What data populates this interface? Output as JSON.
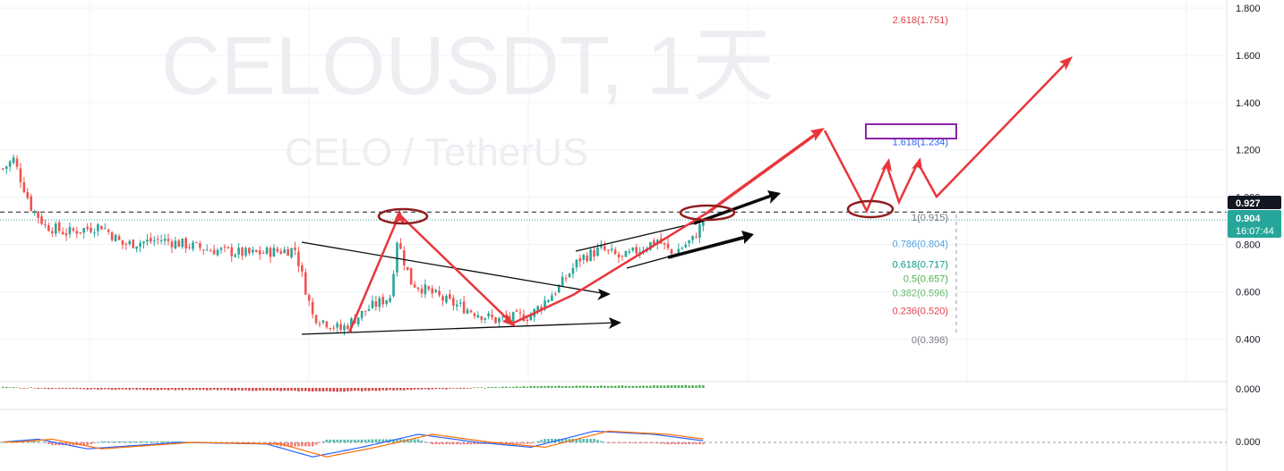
{
  "watermark": {
    "symbol": "CELOUSDT, 1天",
    "name": "CELO / TetherUS"
  },
  "colors": {
    "up": "#26a69a",
    "down": "#ef5350",
    "red_arrow": "#e8363c",
    "black_arrow": "#0b0b0b",
    "ellipse": "#8e1e1e",
    "purple_box": "#8e24aa",
    "grid": "#f0f3fa",
    "badge_black": "#131722",
    "badge_green": "#26a69a"
  },
  "price_axis": {
    "ticks": [
      "1.800",
      "1.600",
      "1.400",
      "1.200",
      "1.000",
      "0.800",
      "0.600",
      "0.400"
    ],
    "tick_values": [
      1.8,
      1.6,
      1.4,
      1.2,
      1.0,
      0.8,
      0.6,
      0.4
    ],
    "last_price_label": "0.927",
    "current_price_label": "0.904",
    "countdown": "16:07:44"
  },
  "indicator_axis": {
    "top_label": "0.000",
    "bottom_label": "0.000"
  },
  "fib_levels": [
    {
      "label": "2.618(1.751)",
      "value": 1.751,
      "color": "#e0424c"
    },
    {
      "label": "1.618(1.234)",
      "value": 1.234,
      "color": "#2962ff"
    },
    {
      "label": "1(0.915)",
      "value": 0.915,
      "color": "#787b86"
    },
    {
      "label": "0.786(0.804)",
      "value": 0.804,
      "color": "#4fa3e0"
    },
    {
      "label": "0.618(0.717)",
      "value": 0.717,
      "color": "#089981"
    },
    {
      "label": "0.5(0.657)",
      "value": 0.657,
      "color": "#4caf50"
    },
    {
      "label": "0.382(0.596)",
      "value": 0.596,
      "color": "#66bb6a"
    },
    {
      "label": "0.236(0.520)",
      "value": 0.52,
      "color": "#e0424c"
    },
    {
      "label": "0(0.398)",
      "value": 0.398,
      "color": "#787b86"
    }
  ],
  "chart_data": {
    "type": "candlestick",
    "title": "",
    "xlabel": "",
    "ylabel": "",
    "ylim": [
      0.36,
      1.82
    ],
    "grid": true,
    "last_price": 0.927,
    "current_price": 0.904,
    "reference_line": 0.915,
    "price_path_keyframes": [
      {
        "bar": 0,
        "price": 1.12
      },
      {
        "bar": 3,
        "price": 1.16
      },
      {
        "bar": 8,
        "price": 0.96
      },
      {
        "bar": 12,
        "price": 0.88
      },
      {
        "bar": 18,
        "price": 0.85
      },
      {
        "bar": 28,
        "price": 0.88
      },
      {
        "bar": 34,
        "price": 0.8
      },
      {
        "bar": 45,
        "price": 0.82
      },
      {
        "bar": 58,
        "price": 0.78
      },
      {
        "bar": 70,
        "price": 0.76
      },
      {
        "bar": 83,
        "price": 0.78
      },
      {
        "bar": 88,
        "price": 0.5
      },
      {
        "bar": 96,
        "price": 0.44
      },
      {
        "bar": 104,
        "price": 0.53
      },
      {
        "bar": 110,
        "price": 0.58
      },
      {
        "bar": 112,
        "price": 0.82
      },
      {
        "bar": 116,
        "price": 0.64
      },
      {
        "bar": 126,
        "price": 0.56
      },
      {
        "bar": 140,
        "price": 0.48
      },
      {
        "bar": 150,
        "price": 0.5
      },
      {
        "bar": 158,
        "price": 0.62
      },
      {
        "bar": 164,
        "price": 0.74
      },
      {
        "bar": 170,
        "price": 0.78
      },
      {
        "bar": 176,
        "price": 0.74
      },
      {
        "bar": 186,
        "price": 0.82
      },
      {
        "bar": 190,
        "price": 0.76
      },
      {
        "bar": 196,
        "price": 0.82
      },
      {
        "bar": 199,
        "price": 0.9
      }
    ],
    "oscillator_keyframes": [
      {
        "bar": 0,
        "v": 0.02
      },
      {
        "bar": 10,
        "v": 0.2
      },
      {
        "bar": 24,
        "v": -0.4
      },
      {
        "bar": 50,
        "v": 0.0
      },
      {
        "bar": 75,
        "v": -0.1
      },
      {
        "bar": 88,
        "v": -0.9
      },
      {
        "bar": 102,
        "v": -0.3
      },
      {
        "bar": 118,
        "v": 0.5
      },
      {
        "bar": 135,
        "v": 0.0
      },
      {
        "bar": 150,
        "v": -0.3
      },
      {
        "bar": 168,
        "v": 0.7
      },
      {
        "bar": 185,
        "v": 0.5
      },
      {
        "bar": 199,
        "v": 0.1
      }
    ],
    "volume_delta_keyframes": [
      {
        "bar": 0,
        "v": 0.1
      },
      {
        "bar": 25,
        "v": -0.3
      },
      {
        "bar": 60,
        "v": -0.5
      },
      {
        "bar": 95,
        "v": -0.9
      },
      {
        "bar": 125,
        "v": -0.2
      },
      {
        "bar": 155,
        "v": 0.4
      },
      {
        "bar": 199,
        "v": 0.6
      }
    ]
  }
}
